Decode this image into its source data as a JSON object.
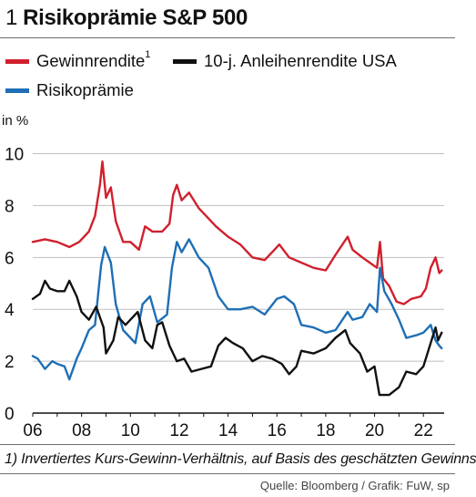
{
  "header": {
    "number": "1",
    "title": "Risikoprämie S&P 500"
  },
  "legend": [
    {
      "label": "Gewinnrendite",
      "sup": "1",
      "color": "#d0202d"
    },
    {
      "label": "10-j. Anleihenrendite USA",
      "sup": "",
      "color": "#111111"
    },
    {
      "label": "Risikoprämie",
      "sup": "",
      "color": "#1f6fb5"
    }
  ],
  "chart_data": {
    "type": "line",
    "ylabel": "in %",
    "ylim": [
      0,
      10.3
    ],
    "yticks": [
      0,
      2,
      4,
      6,
      8,
      10
    ],
    "xlim": [
      2006,
      2022.85
    ],
    "xticks": [
      2006,
      2008,
      2010,
      2012,
      2014,
      2016,
      2018,
      2020,
      2022
    ],
    "xtick_labels": [
      "06",
      "08",
      "10",
      "12",
      "14",
      "16",
      "18",
      "20",
      "22"
    ],
    "grid": "horizontal",
    "series": [
      {
        "name": "Gewinnrendite",
        "color": "#d0202d",
        "points": [
          [
            2006.0,
            6.6
          ],
          [
            2006.5,
            6.7
          ],
          [
            2007.0,
            6.6
          ],
          [
            2007.5,
            6.4
          ],
          [
            2007.9,
            6.6
          ],
          [
            2008.3,
            7.0
          ],
          [
            2008.55,
            7.6
          ],
          [
            2008.75,
            8.8
          ],
          [
            2008.85,
            9.7
          ],
          [
            2009.0,
            8.3
          ],
          [
            2009.2,
            8.7
          ],
          [
            2009.4,
            7.4
          ],
          [
            2009.7,
            6.6
          ],
          [
            2010.0,
            6.6
          ],
          [
            2010.35,
            6.3
          ],
          [
            2010.6,
            7.2
          ],
          [
            2010.9,
            7.0
          ],
          [
            2011.3,
            7.0
          ],
          [
            2011.6,
            7.3
          ],
          [
            2011.75,
            8.4
          ],
          [
            2011.9,
            8.8
          ],
          [
            2012.1,
            8.2
          ],
          [
            2012.4,
            8.5
          ],
          [
            2012.8,
            7.9
          ],
          [
            2013.1,
            7.6
          ],
          [
            2013.5,
            7.2
          ],
          [
            2014.0,
            6.8
          ],
          [
            2014.5,
            6.5
          ],
          [
            2015.0,
            6.0
          ],
          [
            2015.5,
            5.9
          ],
          [
            2015.9,
            6.3
          ],
          [
            2016.1,
            6.5
          ],
          [
            2016.5,
            6.0
          ],
          [
            2017.0,
            5.8
          ],
          [
            2017.5,
            5.6
          ],
          [
            2018.0,
            5.5
          ],
          [
            2018.4,
            6.1
          ],
          [
            2018.9,
            6.8
          ],
          [
            2019.1,
            6.3
          ],
          [
            2019.5,
            6.0
          ],
          [
            2019.8,
            5.8
          ],
          [
            2020.1,
            5.6
          ],
          [
            2020.22,
            6.6
          ],
          [
            2020.35,
            5.2
          ],
          [
            2020.6,
            4.9
          ],
          [
            2020.9,
            4.3
          ],
          [
            2021.2,
            4.2
          ],
          [
            2021.5,
            4.4
          ],
          [
            2021.9,
            4.5
          ],
          [
            2022.1,
            4.8
          ],
          [
            2022.3,
            5.6
          ],
          [
            2022.5,
            6.0
          ],
          [
            2022.65,
            5.4
          ],
          [
            2022.75,
            5.5
          ]
        ]
      },
      {
        "name": "10-j. Anleihenrendite USA",
        "color": "#111111",
        "points": [
          [
            2006.0,
            4.4
          ],
          [
            2006.3,
            4.6
          ],
          [
            2006.5,
            5.1
          ],
          [
            2006.7,
            4.8
          ],
          [
            2007.0,
            4.7
          ],
          [
            2007.3,
            4.7
          ],
          [
            2007.5,
            5.1
          ],
          [
            2007.8,
            4.5
          ],
          [
            2008.0,
            3.9
          ],
          [
            2008.3,
            3.6
          ],
          [
            2008.6,
            4.1
          ],
          [
            2008.9,
            3.3
          ],
          [
            2009.0,
            2.3
          ],
          [
            2009.3,
            2.8
          ],
          [
            2009.5,
            3.7
          ],
          [
            2009.8,
            3.4
          ],
          [
            2010.1,
            3.7
          ],
          [
            2010.3,
            3.9
          ],
          [
            2010.6,
            2.8
          ],
          [
            2010.9,
            2.5
          ],
          [
            2011.1,
            3.4
          ],
          [
            2011.3,
            3.5
          ],
          [
            2011.6,
            2.6
          ],
          [
            2011.9,
            2.0
          ],
          [
            2012.2,
            2.1
          ],
          [
            2012.5,
            1.6
          ],
          [
            2012.9,
            1.7
          ],
          [
            2013.3,
            1.8
          ],
          [
            2013.6,
            2.6
          ],
          [
            2013.9,
            2.9
          ],
          [
            2014.2,
            2.7
          ],
          [
            2014.6,
            2.5
          ],
          [
            2015.0,
            2.0
          ],
          [
            2015.4,
            2.2
          ],
          [
            2015.8,
            2.1
          ],
          [
            2016.2,
            1.9
          ],
          [
            2016.5,
            1.5
          ],
          [
            2016.8,
            1.8
          ],
          [
            2017.0,
            2.4
          ],
          [
            2017.5,
            2.3
          ],
          [
            2018.0,
            2.5
          ],
          [
            2018.4,
            2.9
          ],
          [
            2018.8,
            3.2
          ],
          [
            2019.0,
            2.7
          ],
          [
            2019.4,
            2.3
          ],
          [
            2019.7,
            1.6
          ],
          [
            2020.0,
            1.8
          ],
          [
            2020.2,
            0.7
          ],
          [
            2020.6,
            0.7
          ],
          [
            2021.0,
            1.0
          ],
          [
            2021.3,
            1.6
          ],
          [
            2021.7,
            1.5
          ],
          [
            2022.0,
            1.8
          ],
          [
            2022.3,
            2.7
          ],
          [
            2022.5,
            3.3
          ],
          [
            2022.6,
            2.8
          ],
          [
            2022.75,
            3.1
          ]
        ]
      },
      {
        "name": "Risikoprämie",
        "color": "#1f6fb5",
        "points": [
          [
            2006.0,
            2.2
          ],
          [
            2006.2,
            2.1
          ],
          [
            2006.5,
            1.7
          ],
          [
            2006.8,
            2.0
          ],
          [
            2007.0,
            1.9
          ],
          [
            2007.3,
            1.8
          ],
          [
            2007.5,
            1.3
          ],
          [
            2007.8,
            2.1
          ],
          [
            2008.0,
            2.5
          ],
          [
            2008.3,
            3.2
          ],
          [
            2008.55,
            3.4
          ],
          [
            2008.8,
            5.7
          ],
          [
            2008.95,
            6.4
          ],
          [
            2009.2,
            5.8
          ],
          [
            2009.4,
            4.2
          ],
          [
            2009.7,
            3.2
          ],
          [
            2010.0,
            2.9
          ],
          [
            2010.2,
            2.7
          ],
          [
            2010.5,
            4.2
          ],
          [
            2010.8,
            4.5
          ],
          [
            2011.1,
            3.5
          ],
          [
            2011.5,
            3.8
          ],
          [
            2011.7,
            5.6
          ],
          [
            2011.9,
            6.6
          ],
          [
            2012.1,
            6.2
          ],
          [
            2012.4,
            6.7
          ],
          [
            2012.8,
            6.0
          ],
          [
            2013.2,
            5.6
          ],
          [
            2013.6,
            4.5
          ],
          [
            2014.0,
            4.0
          ],
          [
            2014.5,
            4.0
          ],
          [
            2015.0,
            4.1
          ],
          [
            2015.5,
            3.8
          ],
          [
            2016.0,
            4.4
          ],
          [
            2016.3,
            4.5
          ],
          [
            2016.7,
            4.2
          ],
          [
            2017.0,
            3.4
          ],
          [
            2017.5,
            3.3
          ],
          [
            2018.0,
            3.1
          ],
          [
            2018.4,
            3.2
          ],
          [
            2018.9,
            3.9
          ],
          [
            2019.1,
            3.6
          ],
          [
            2019.5,
            3.7
          ],
          [
            2019.8,
            4.2
          ],
          [
            2020.1,
            3.9
          ],
          [
            2020.22,
            5.6
          ],
          [
            2020.4,
            4.7
          ],
          [
            2020.7,
            4.2
          ],
          [
            2021.0,
            3.6
          ],
          [
            2021.3,
            2.9
          ],
          [
            2021.7,
            3.0
          ],
          [
            2022.0,
            3.1
          ],
          [
            2022.3,
            3.4
          ],
          [
            2022.5,
            2.8
          ],
          [
            2022.65,
            2.6
          ],
          [
            2022.75,
            2.5
          ]
        ]
      }
    ]
  },
  "footnote": "1) Invertiertes Kurs-Gewinn-Verhältnis, auf Basis des geschätzten Gewinns",
  "source": "Quelle: Bloomberg / Grafik: FuW, sp"
}
